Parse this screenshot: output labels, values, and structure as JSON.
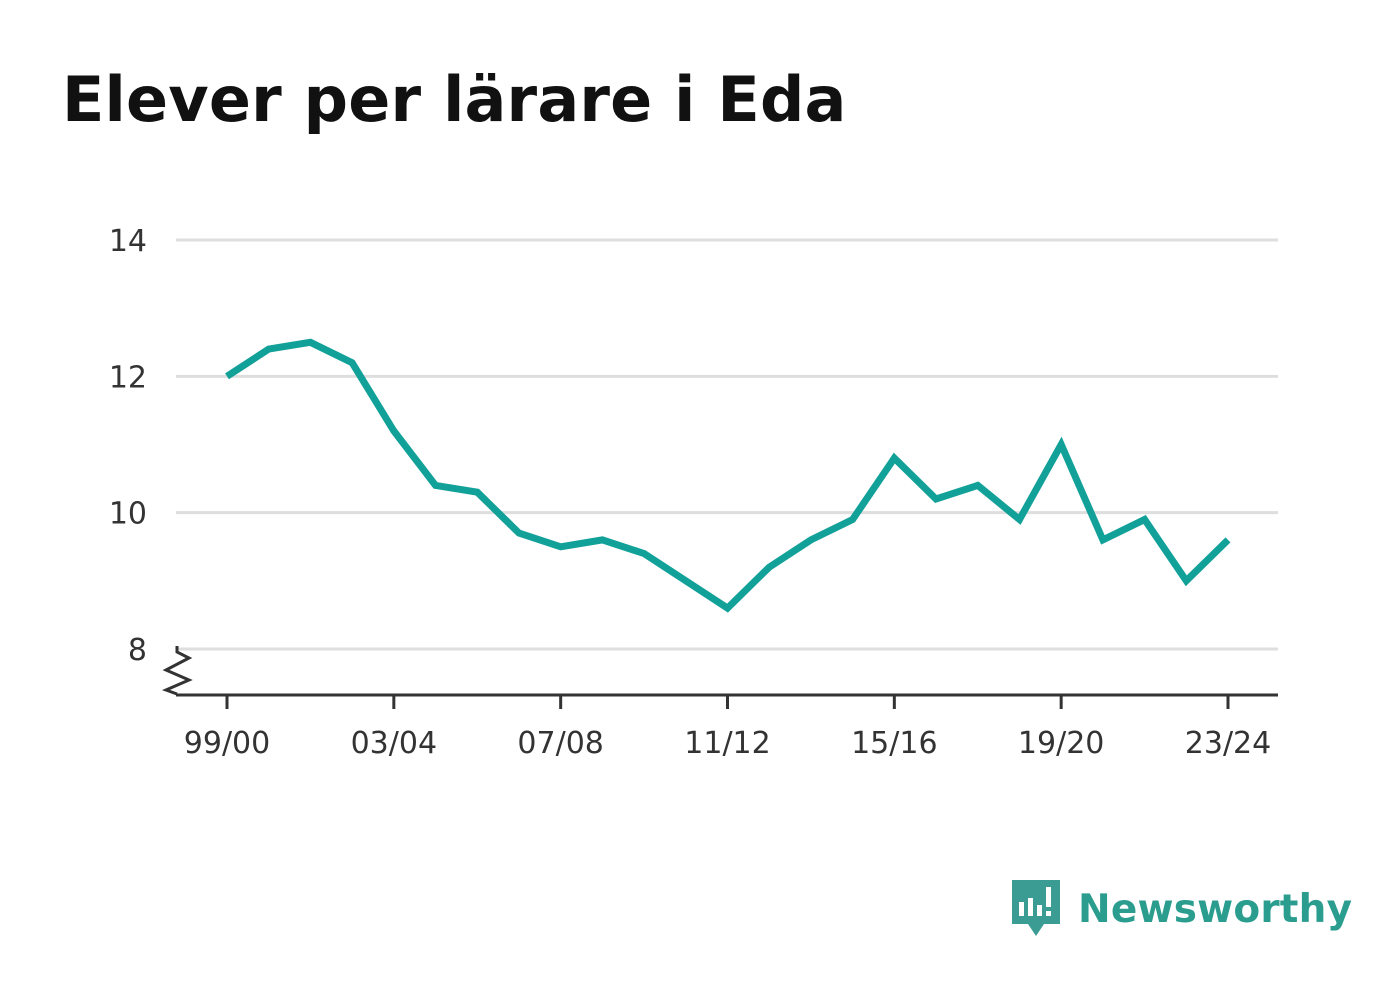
{
  "title": "Elever per lärare i Eda",
  "brand": {
    "name": "Newsworthy",
    "icon": "newsworthy-bar-chart-bubble-icon",
    "color": "#3a9c93"
  },
  "chart_data": {
    "type": "line",
    "title": "Elever per lärare i Eda",
    "xlabel": "",
    "ylabel": "",
    "x": [
      "99/00",
      "00/01",
      "01/02",
      "02/03",
      "03/04",
      "04/05",
      "05/06",
      "06/07",
      "07/08",
      "08/09",
      "09/10",
      "10/11",
      "11/12",
      "12/13",
      "13/14",
      "14/15",
      "15/16",
      "16/17",
      "17/18",
      "18/19",
      "19/20",
      "20/21",
      "21/22",
      "22/23",
      "23/24"
    ],
    "x_tick_labels": [
      "99/00",
      "03/04",
      "07/08",
      "11/12",
      "15/16",
      "19/20",
      "23/24"
    ],
    "y_ticks": [
      8,
      10,
      12,
      14
    ],
    "ylim": [
      8,
      14
    ],
    "y_axis_break": true,
    "grid": true,
    "series": [
      {
        "values": [
          12.0,
          12.4,
          12.5,
          12.2,
          11.2,
          10.4,
          10.3,
          9.7,
          9.5,
          9.6,
          9.4,
          9.0,
          8.6,
          9.2,
          9.6,
          9.9,
          10.8,
          10.2,
          10.4,
          9.9,
          11.0,
          9.6,
          9.9,
          9.0,
          9.6
        ],
        "color": "#12a198"
      }
    ]
  }
}
